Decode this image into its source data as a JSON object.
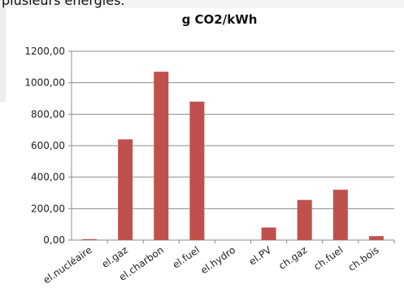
{
  "page": {
    "text_fragment": "plusieurs énergies."
  },
  "chart_data": {
    "type": "bar",
    "title": "g CO2/kWh",
    "xlabel": "",
    "ylabel": "",
    "ylim": [
      0,
      1200
    ],
    "y_ticks": [
      "0,00",
      "200,00",
      "400,00",
      "600,00",
      "800,00",
      "1000,00",
      "1200,00"
    ],
    "grid": true,
    "legend": "none",
    "categories": [
      "el.nucléaire",
      "el.gaz",
      "el.charbon",
      "el.fuel",
      "el.hydro",
      "el.PV",
      "ch.gaz",
      "ch.fuel",
      "ch.bois"
    ],
    "values": [
      6,
      640,
      1070,
      880,
      0,
      80,
      255,
      320,
      25
    ],
    "bar_color": "#c0504d"
  }
}
